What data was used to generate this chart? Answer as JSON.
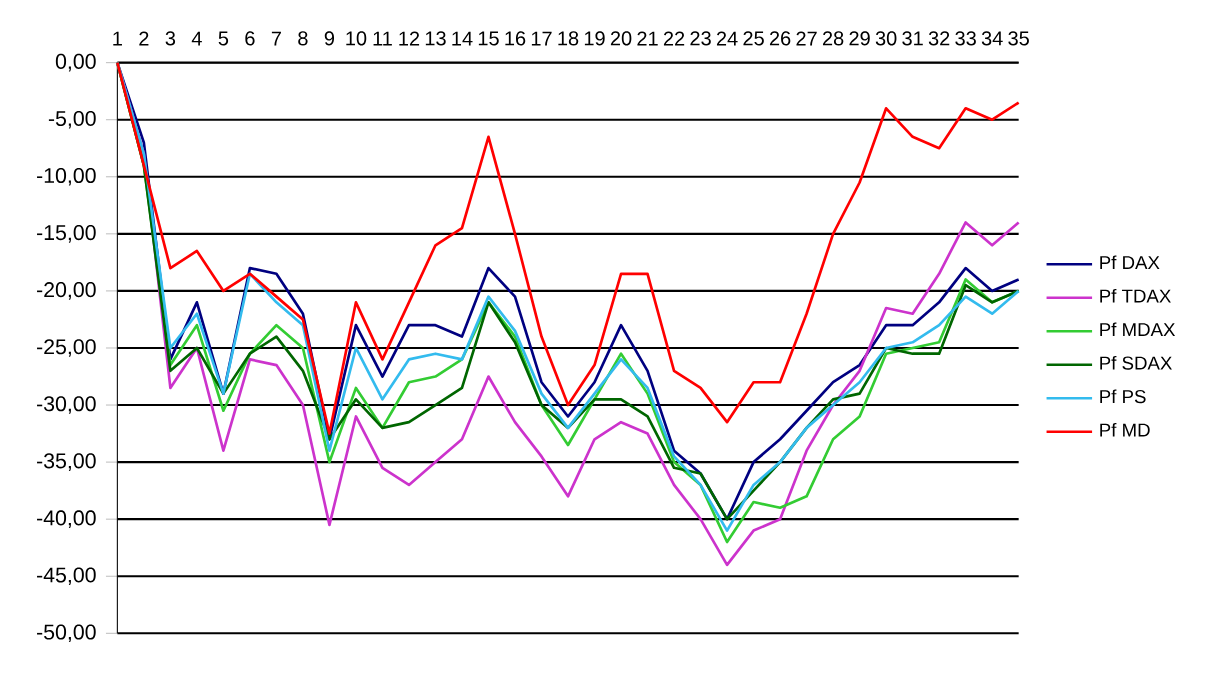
{
  "chart_data": {
    "type": "line",
    "categories": [
      "1",
      "2",
      "3",
      "4",
      "5",
      "6",
      "7",
      "8",
      "9",
      "10",
      "11",
      "12",
      "13",
      "14",
      "15",
      "16",
      "17",
      "18",
      "19",
      "20",
      "21",
      "22",
      "23",
      "24",
      "25",
      "26",
      "27",
      "28",
      "29",
      "30",
      "31",
      "32",
      "33",
      "34",
      "35"
    ],
    "ylim": [
      -50,
      0
    ],
    "yticks": [
      {
        "value": 0,
        "label": "0,00"
      },
      {
        "value": -5,
        "label": "-5,00"
      },
      {
        "value": -10,
        "label": "-10,00"
      },
      {
        "value": -15,
        "label": "-15,00"
      },
      {
        "value": -20,
        "label": "-20,00"
      },
      {
        "value": -25,
        "label": "-25,00"
      },
      {
        "value": -30,
        "label": "-30,00"
      },
      {
        "value": -35,
        "label": "-35,00"
      },
      {
        "value": -40,
        "label": "-40,00"
      },
      {
        "value": -45,
        "label": "-45,00"
      },
      {
        "value": -50,
        "label": "-50,00"
      }
    ],
    "grid": "y",
    "legend": "right",
    "marker": "none",
    "series": [
      {
        "name": "Pf DAX",
        "color": "#000080",
        "values": [
          0,
          -7,
          -26,
          -21,
          -29,
          -18,
          -18.5,
          -22,
          -33,
          -23,
          -27.5,
          -23,
          -23,
          -24,
          -18,
          -20.5,
          -28,
          -31,
          -28,
          -23,
          -27,
          -34,
          -36,
          -40,
          -35,
          -33,
          -30.5,
          -28,
          -26.5,
          -23,
          -23,
          -21,
          -18,
          -20,
          -19
        ]
      },
      {
        "name": "Pf TDAX",
        "color": "#cc33cc",
        "values": [
          0,
          -8,
          -28.5,
          -25,
          -34,
          -26,
          -26.5,
          -30,
          -40.5,
          -31,
          -35.5,
          -37,
          -35,
          -33,
          -27.5,
          -31.5,
          -34.5,
          -38,
          -33,
          -31.5,
          -32.5,
          -37,
          -40,
          -44,
          -41,
          -40,
          -34,
          -30,
          -27,
          -21.5,
          -22,
          -18.5,
          -14,
          -16,
          -14
        ]
      },
      {
        "name": "Pf MDAX",
        "color": "#33cc33",
        "values": [
          0,
          -9,
          -26.5,
          -23,
          -30.5,
          -25.5,
          -23,
          -25,
          -35,
          -28.5,
          -32,
          -28,
          -27.5,
          -26,
          -21,
          -24,
          -30,
          -33.5,
          -29.5,
          -25.5,
          -29,
          -35,
          -37,
          -42,
          -38.5,
          -39,
          -38,
          -33,
          -31,
          -25.5,
          -25,
          -24.5,
          -19,
          -21,
          -20
        ]
      },
      {
        "name": "Pf SDAX",
        "color": "#006600",
        "values": [
          0,
          -9,
          -27,
          -25,
          -29,
          -25.5,
          -24,
          -27,
          -33,
          -29.5,
          -32,
          -31.5,
          -30,
          -28.5,
          -21,
          -24.5,
          -30,
          -32,
          -29.5,
          -29.5,
          -31,
          -35.5,
          -36,
          -40,
          -37.5,
          -35,
          -32,
          -29.5,
          -29,
          -25,
          -25.5,
          -25.5,
          -19.5,
          -21,
          -20
        ]
      },
      {
        "name": "Pf PS",
        "color": "#33bbee",
        "values": [
          0,
          -8,
          -25,
          -22,
          -29,
          -18.5,
          -21,
          -23,
          -34,
          -25,
          -29.5,
          -26,
          -25.5,
          -26,
          -20.5,
          -23.5,
          -29,
          -32,
          -29,
          -26,
          -28.5,
          -34.5,
          -37,
          -41,
          -37,
          -35,
          -32,
          -30,
          -28,
          -25,
          -24.5,
          -23,
          -20.5,
          -22,
          -20
        ]
      },
      {
        "name": "Pf MD",
        "color": "#ff0000",
        "values": [
          0,
          -9,
          -18,
          -16.5,
          -20,
          -18.5,
          -20.5,
          -22.5,
          -32.5,
          -21,
          -26,
          -21,
          -16,
          -14.5,
          -6.5,
          -15,
          -24,
          -30,
          -26.5,
          -18.5,
          -18.5,
          -27,
          -28.5,
          -31.5,
          -28,
          -28,
          -22,
          -15,
          -10.5,
          -4,
          -6.5,
          -7.5,
          -4,
          -5,
          -3.5
        ]
      }
    ]
  }
}
